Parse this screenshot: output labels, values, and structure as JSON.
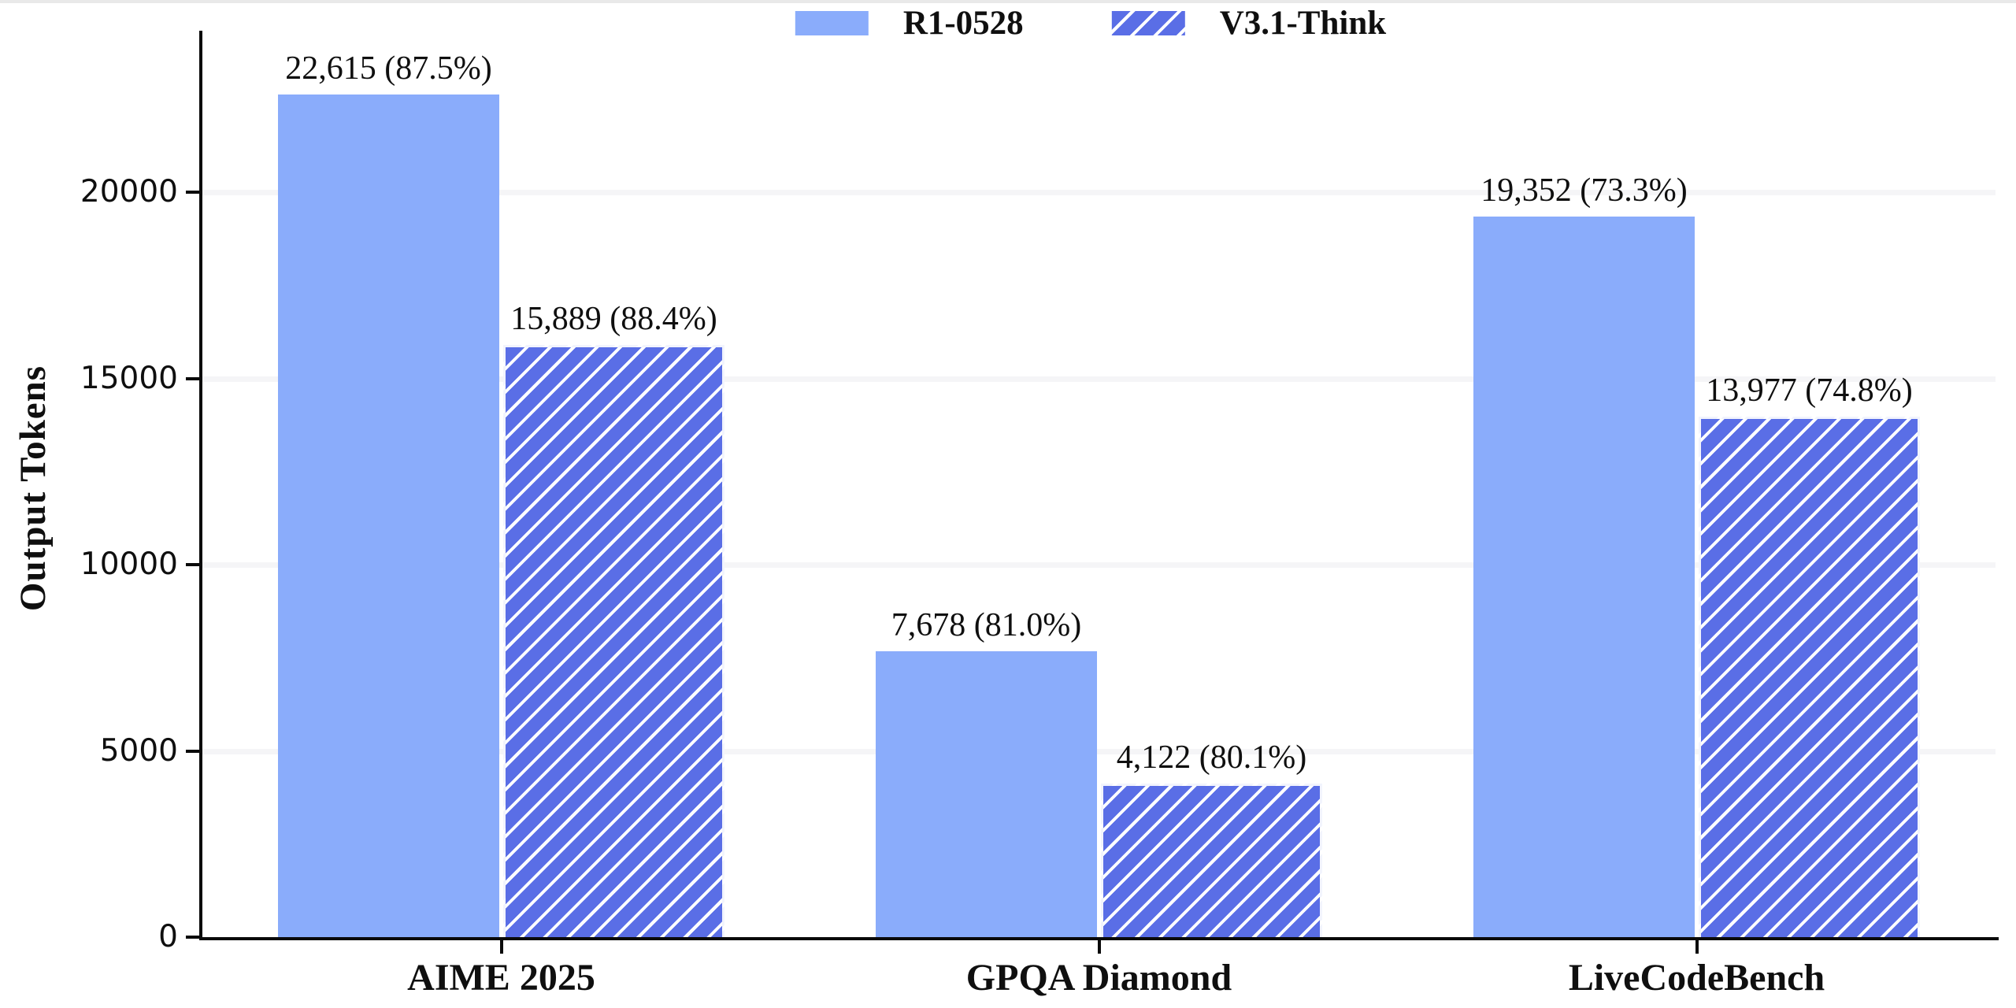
{
  "legend": {
    "items": [
      {
        "label": "R1-0528",
        "swatch": "solid"
      },
      {
        "label": "V3.1-Think",
        "swatch": "hatched"
      }
    ]
  },
  "axis": {
    "ylabel": "Output Tokens",
    "y_ticks": [
      "0",
      "5000",
      "10000",
      "15000",
      "20000"
    ],
    "y_tick_values": [
      0,
      5000,
      10000,
      15000,
      20000
    ]
  },
  "chart_data": {
    "type": "bar",
    "title": "",
    "xlabel": "",
    "ylabel": "Output Tokens",
    "categories": [
      "AIME 2025",
      "GPQA Diamond",
      "LiveCodeBench"
    ],
    "series": [
      {
        "name": "R1-0528",
        "style": "solid",
        "color": "#8aacfb",
        "values": [
          22615,
          7678,
          19352
        ],
        "data_labels": [
          "22,615 (87.5%)",
          "7,678 (81.0%)",
          "19,352 (73.3%)"
        ]
      },
      {
        "name": "V3.1-Think",
        "style": "hatched",
        "color": "#5a6ee6",
        "hatch": "/",
        "hatch_line_color": "#ffffff",
        "values": [
          15889,
          4122,
          13977
        ],
        "data_labels": [
          "15,889 (88.4%)",
          "4,122 (80.1%)",
          "13,977 (74.8%)"
        ]
      }
    ],
    "ylim": [
      0,
      24000
    ],
    "grid": "horizontal, faint",
    "legend_position": "top-center"
  },
  "colors": {
    "bar_solid": "#8aacfb",
    "bar_hatched": "#5a6ee6",
    "hatch_line": "#ffffff",
    "axis": "#0a0a0a",
    "grid": "#f5f5f7",
    "text": "#0f0f0f",
    "top_strip": "#e9e9e9"
  }
}
